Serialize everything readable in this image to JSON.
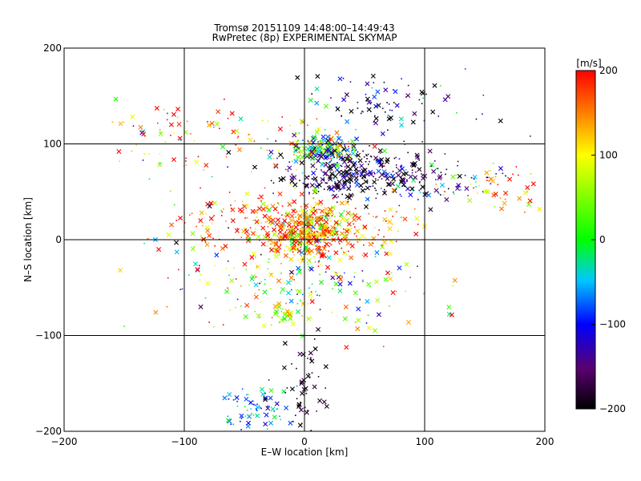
{
  "chart_data": {
    "type": "scatter",
    "title": "Tromsø 20151109 14:48:00–14:49:43",
    "subtitle": "RwPretec (8p) EXPERIMENTAL SKYMAP",
    "xlabel": "E–W location [km]",
    "ylabel": "N–S location [km]",
    "xlim": [
      -200,
      200
    ],
    "ylim": [
      -200,
      200
    ],
    "xticks": [
      -200,
      -100,
      0,
      100,
      200
    ],
    "yticks": [
      -200,
      -100,
      0,
      100,
      200
    ],
    "grid": true,
    "colorbar": {
      "label": "[m/s]",
      "range": [
        -200,
        200
      ],
      "ticks": [
        200,
        100,
        0,
        -100,
        -200
      ],
      "colormap": "black-purple-blue-cyan-green-yellow-red"
    },
    "markers": [
      "x",
      "dot"
    ],
    "clusters": [
      {
        "x": 5,
        "y": 8,
        "sx": 14,
        "sy": 14,
        "n": 420,
        "v": 130,
        "sv": 90
      },
      {
        "x": 15,
        "y": 95,
        "sx": 14,
        "sy": 8,
        "n": 220,
        "v": 10,
        "sv": 110
      },
      {
        "x": 45,
        "y": 70,
        "sx": 35,
        "sy": 14,
        "n": 340,
        "v": -170,
        "sv": 55
      },
      {
        "x": 115,
        "y": 60,
        "sx": 25,
        "sy": 9,
        "n": 60,
        "v": -140,
        "sv": 90
      },
      {
        "x": 160,
        "y": 55,
        "sx": 20,
        "sy": 12,
        "n": 45,
        "v": 140,
        "sv": 70
      },
      {
        "x": 40,
        "y": 10,
        "sx": 30,
        "sy": 15,
        "n": 130,
        "v": 150,
        "sv": 70
      },
      {
        "x": -45,
        "y": 15,
        "sx": 30,
        "sy": 20,
        "n": 140,
        "v": 160,
        "sv": 60
      },
      {
        "x": 0,
        "y": -40,
        "sx": 40,
        "sy": 20,
        "n": 110,
        "v": 30,
        "sv": 120
      },
      {
        "x": -20,
        "y": -80,
        "sx": 12,
        "sy": 6,
        "n": 40,
        "v": 60,
        "sv": 60
      },
      {
        "x": -40,
        "y": -180,
        "sx": 15,
        "sy": 12,
        "n": 80,
        "v": -60,
        "sv": 40
      },
      {
        "x": 0,
        "y": -150,
        "sx": 10,
        "sy": 30,
        "n": 60,
        "v": -190,
        "sv": 20
      },
      {
        "x": 70,
        "y": 145,
        "sx": 35,
        "sy": 15,
        "n": 90,
        "v": -170,
        "sv": 80
      },
      {
        "x": -60,
        "y": 100,
        "sx": 50,
        "sy": 20,
        "n": 90,
        "v": 90,
        "sv": 120
      },
      {
        "x": -130,
        "y": 120,
        "sx": 20,
        "sy": 12,
        "n": 20,
        "v": 150,
        "sv": 90
      },
      {
        "x": 60,
        "y": -60,
        "sx": 30,
        "sy": 20,
        "n": 40,
        "v": 60,
        "sv": 130
      },
      {
        "x": -90,
        "y": -20,
        "sx": 40,
        "sy": 40,
        "n": 50,
        "v": 50,
        "sv": 130
      }
    ]
  }
}
